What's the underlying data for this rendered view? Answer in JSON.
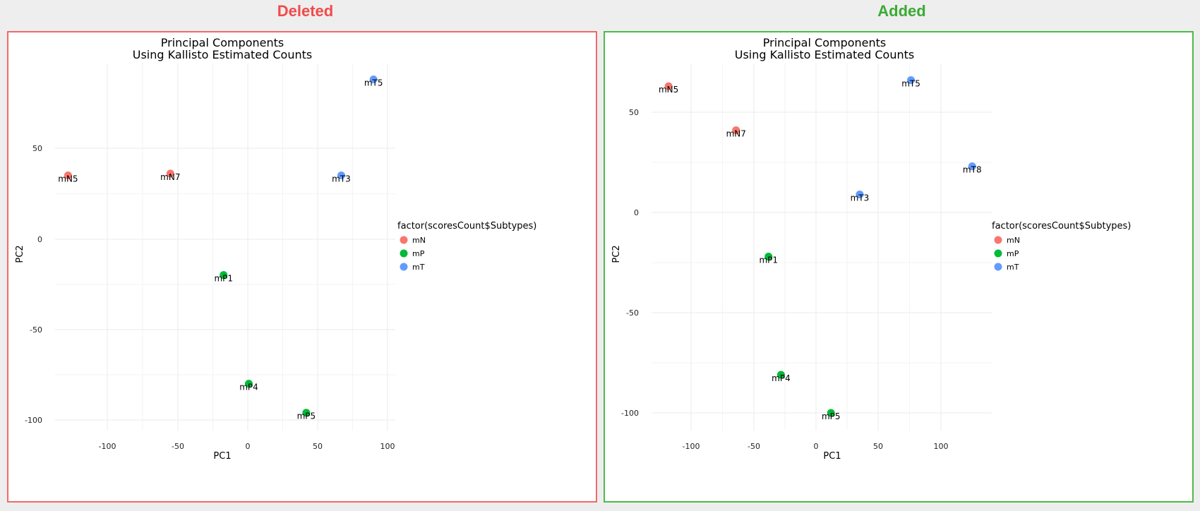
{
  "headings": {
    "left": {
      "text": "Deleted",
      "color": "#f24a4a"
    },
    "right": {
      "text": "Added",
      "color": "#3aaa35"
    }
  },
  "colors": {
    "left_border": "#f06a6a",
    "right_border": "#4cbb47",
    "mN": "#f8766d",
    "mP": "#00ba38",
    "mT": "#619cff"
  },
  "chart_data": [
    {
      "type": "scatter",
      "title": [
        "Principal Components",
        "Using Kallisto Estimated Counts"
      ],
      "xlabel": "PC1",
      "ylabel": "PC2",
      "xlim": [
        -125,
        100
      ],
      "ylim": [
        -105,
        90
      ],
      "xticks": [
        -100,
        -50,
        0,
        50,
        100
      ],
      "yticks": [
        -100,
        -50,
        0,
        50
      ],
      "grid": true,
      "legend": {
        "title": "factor(scoresCount$Subtypes)",
        "position": "right",
        "entries": [
          "mN",
          "mP",
          "mT"
        ]
      },
      "points": [
        {
          "label": "mN5",
          "group": "mN",
          "x": -128,
          "y": 35
        },
        {
          "label": "mN7",
          "group": "mN",
          "x": -55,
          "y": 36
        },
        {
          "label": "mP1",
          "group": "mP",
          "x": -17,
          "y": -20
        },
        {
          "label": "mP4",
          "group": "mP",
          "x": 1,
          "y": -80
        },
        {
          "label": "mP5",
          "group": "mP",
          "x": 42,
          "y": -96
        },
        {
          "label": "mT3",
          "group": "mT",
          "x": 67,
          "y": 35
        },
        {
          "label": "mT5",
          "group": "mT",
          "x": 90,
          "y": 88
        }
      ]
    },
    {
      "type": "scatter",
      "title": [
        "Principal Components",
        "Using Kallisto Estimated Counts"
      ],
      "xlabel": "PC1",
      "ylabel": "PC2",
      "xlim": [
        -125,
        125
      ],
      "ylim": [
        -105,
        70
      ],
      "xticks": [
        -100,
        -50,
        0,
        50,
        100
      ],
      "yticks": [
        -100,
        -50,
        0,
        50
      ],
      "grid": true,
      "legend": {
        "title": "factor(scoresCount$Subtypes)",
        "position": "right",
        "entries": [
          "mN",
          "mP",
          "mT"
        ]
      },
      "points": [
        {
          "label": "mN5",
          "group": "mN",
          "x": -118,
          "y": 63
        },
        {
          "label": "mN7",
          "group": "mN",
          "x": -64,
          "y": 41
        },
        {
          "label": "mP1",
          "group": "mP",
          "x": -38,
          "y": -22
        },
        {
          "label": "mP4",
          "group": "mP",
          "x": -28,
          "y": -81
        },
        {
          "label": "mP5",
          "group": "mP",
          "x": 12,
          "y": -100
        },
        {
          "label": "mT3",
          "group": "mT",
          "x": 35,
          "y": 9
        },
        {
          "label": "mT5",
          "group": "mT",
          "x": 76,
          "y": 66
        },
        {
          "label": "mT8",
          "group": "mT",
          "x": 125,
          "y": 23
        }
      ]
    }
  ]
}
